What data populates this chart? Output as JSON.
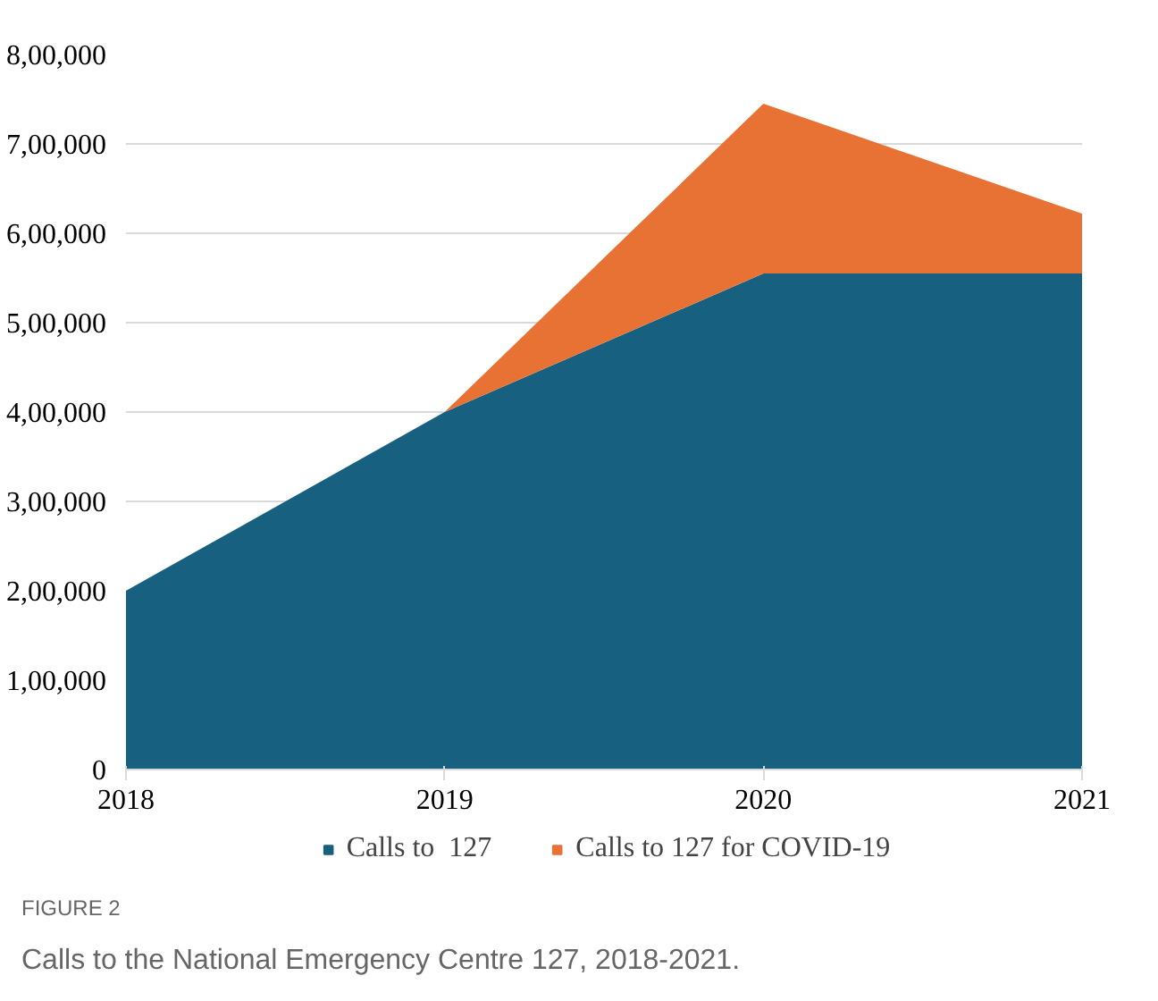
{
  "chart_data": {
    "type": "area",
    "stacked": true,
    "x": [
      2018,
      2019,
      2020,
      2021
    ],
    "series": [
      {
        "name": "Calls to  127",
        "color": "#17607f",
        "values": [
          200000,
          400000,
          555000,
          555000
        ]
      },
      {
        "name": "Calls to 127 for COVID-19",
        "color": "#e87234",
        "values": [
          0,
          0,
          190000,
          67000
        ]
      }
    ],
    "xlim": [
      2018,
      2021
    ],
    "xticks": [
      2018,
      2019,
      2020,
      2021
    ],
    "ylim": [
      0,
      800000
    ],
    "yticks": [
      {
        "value": 0,
        "label": "0"
      },
      {
        "value": 100000,
        "label": "1,00,000"
      },
      {
        "value": 200000,
        "label": "2,00,000"
      },
      {
        "value": 300000,
        "label": "3,00,000"
      },
      {
        "value": 400000,
        "label": "4,00,000"
      },
      {
        "value": 500000,
        "label": "5,00,000"
      },
      {
        "value": 600000,
        "label": "6,00,000"
      },
      {
        "value": 700000,
        "label": "7,00,000"
      },
      {
        "value": 800000,
        "label": "8,00,000"
      }
    ],
    "grid": "y",
    "legend": "bottom",
    "annotations": [
      "FIGURE 2",
      "Calls to the National Emergency Centre 127, 2018-2021."
    ]
  }
}
